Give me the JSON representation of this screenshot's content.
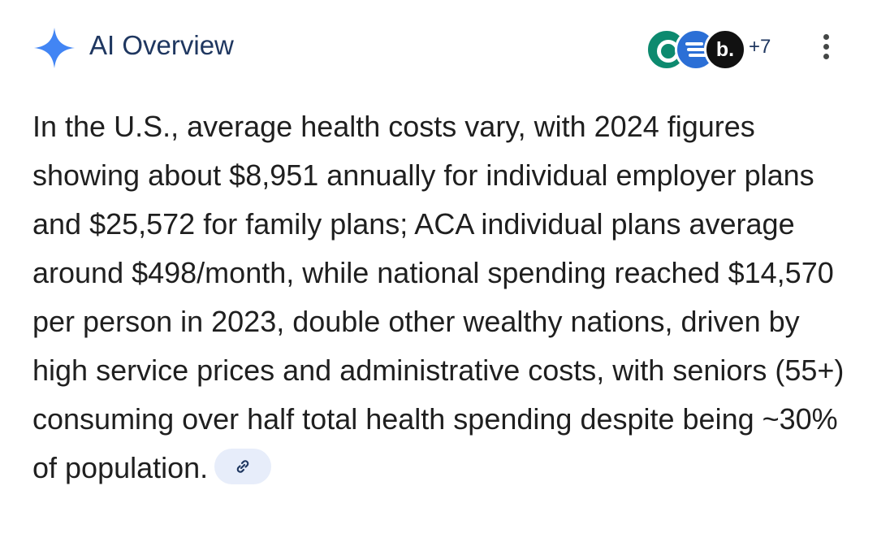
{
  "header": {
    "title": "AI Overview",
    "sources_more_count": "+7",
    "source_icons": [
      "circle-o-source-icon",
      "blue-stripes-source-icon",
      "b-dot-source-icon"
    ],
    "source_3_letter": "b.",
    "accent_color": "#1f3760",
    "sparkle_color": "#4285f4"
  },
  "overview": {
    "text": "In the U.S., average health costs vary, with 2024 figures showing about $8,951 annually for individual employer plans and $25,572 for family plans; ACA individual plans average around $498/month, while national spending reached $14,570 per person in 2023, double other wealthy nations, driven by high service prices and administrative costs, with seniors (55+) consuming over half total health spending despite being ~30% of population."
  },
  "link_chip": {
    "icon": "link-icon"
  }
}
